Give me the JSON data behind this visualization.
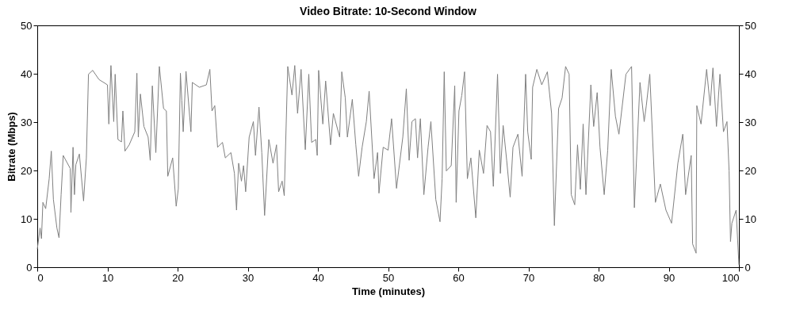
{
  "chart_data": {
    "type": "line",
    "title": "Video Bitrate: 10-Second Window",
    "xlabel": "Time (minutes)",
    "ylabel": "Bitrate (Mbps)",
    "x": [
      0.0,
      0.4,
      0.6,
      0.8,
      1.2,
      1.7,
      2.0,
      2.3,
      2.8,
      3.1,
      3.4,
      3.7,
      4.7,
      4.8,
      5.1,
      5.3,
      5.5,
      6.0,
      6.6,
      7.0,
      7.3,
      7.9,
      8.8,
      10.0,
      10.2,
      10.5,
      10.9,
      11.1,
      11.5,
      12.0,
      12.2,
      12.5,
      13.1,
      13.9,
      14.2,
      14.4,
      14.7,
      15.2,
      15.8,
      16.1,
      16.4,
      16.9,
      17.4,
      18.0,
      18.4,
      18.6,
      19.3,
      19.8,
      20.1,
      20.4,
      20.6,
      20.8,
      21.2,
      21.9,
      22.1,
      23.1,
      24.1,
      24.6,
      24.9,
      25.3,
      25.7,
      26.4,
      26.8,
      27.6,
      28.1,
      28.4,
      28.7,
      29.1,
      29.4,
      29.7,
      30.2,
      30.8,
      31.1,
      31.6,
      32.0,
      32.4,
      33.0,
      33.6,
      34.1,
      34.4,
      34.9,
      35.2,
      35.7,
      36.3,
      36.7,
      37.1,
      37.6,
      38.2,
      38.7,
      39.1,
      39.7,
      39.9,
      40.1,
      40.7,
      41.1,
      41.8,
      42.2,
      43.1,
      43.4,
      43.9,
      44.2,
      44.9,
      45.4,
      45.8,
      46.3,
      46.9,
      47.3,
      48.0,
      48.5,
      48.7,
      49.3,
      50.0,
      50.5,
      51.2,
      52.1,
      52.6,
      53.0,
      53.4,
      53.9,
      54.2,
      54.6,
      55.1,
      55.7,
      56.1,
      56.8,
      57.4,
      57.7,
      58.0,
      58.3,
      59.0,
      59.5,
      59.7,
      60.1,
      60.5,
      60.9,
      61.3,
      61.8,
      62.5,
      63.0,
      63.6,
      64.1,
      64.6,
      65.0,
      65.6,
      66.0,
      66.4,
      66.9,
      67.4,
      67.8,
      68.5,
      69.1,
      69.6,
      69.9,
      70.4,
      70.6,
      71.2,
      71.9,
      72.7,
      73.3,
      73.7,
      74.3,
      74.8,
      75.3,
      75.8,
      76.1,
      76.6,
      77.0,
      77.4,
      77.8,
      78.2,
      78.9,
      79.3,
      79.8,
      80.2,
      80.8,
      81.3,
      81.8,
      82.4,
      82.9,
      83.9,
      84.7,
      85.1,
      85.9,
      86.5,
      86.8,
      87.3,
      88.1,
      88.8,
      89.6,
      90.4,
      91.3,
      92.0,
      92.4,
      93.2,
      93.4,
      93.9,
      94.0,
      94.6,
      95.4,
      95.9,
      96.3,
      96.8,
      97.3,
      97.8,
      98.3,
      98.6,
      98.8,
      99.0,
      99.6,
      100.0
    ],
    "values": [
      3.7,
      8.1,
      5.9,
      13.4,
      12.1,
      18.3,
      24,
      14,
      8.1,
      6.1,
      15,
      23.1,
      20.4,
      11.3,
      24.8,
      15,
      21.2,
      23.4,
      13.7,
      22.6,
      39.9,
      40.7,
      38.8,
      37.7,
      29.6,
      41.7,
      30.1,
      39.9,
      26.4,
      25.9,
      32.3,
      24,
      25.3,
      28,
      40.1,
      26.9,
      35.8,
      29.1,
      26.9,
      22.1,
      37.5,
      23.7,
      41.5,
      32.8,
      32.3,
      18.8,
      22.6,
      12.6,
      16.2,
      40.1,
      34.5,
      28,
      40.5,
      28,
      38.2,
      37.2,
      37.7,
      40.9,
      32.3,
      33.4,
      24.8,
      25.8,
      22.6,
      23.7,
      19.4,
      11.8,
      21.5,
      17.8,
      21,
      15.6,
      26.9,
      30.1,
      23.1,
      33.1,
      23.7,
      10.7,
      26.4,
      21.5,
      25.3,
      15.6,
      17.8,
      14.8,
      41.5,
      35.6,
      41.7,
      31.8,
      40.9,
      24.3,
      39.9,
      25.8,
      26.4,
      23.1,
      40.7,
      29.6,
      38.5,
      25.3,
      31.8,
      26.9,
      40.4,
      35,
      26.9,
      34.7,
      25.3,
      18.8,
      24.8,
      30.1,
      36.4,
      18.3,
      23.7,
      15.3,
      24.8,
      24.2,
      30.7,
      16.3,
      26.9,
      36.9,
      22.1,
      30.1,
      30.7,
      22.6,
      30.7,
      15,
      24.8,
      30.1,
      14,
      9.4,
      18.3,
      40.4,
      19.9,
      21,
      37.5,
      13.4,
      32.3,
      35.5,
      40.4,
      18.3,
      22.6,
      10.2,
      24.2,
      19.4,
      29.3,
      28,
      16.7,
      39.9,
      19.4,
      29.3,
      22.1,
      14.5,
      24.8,
      27.5,
      18.8,
      39.9,
      28,
      22.3,
      37.2,
      40.9,
      37.7,
      40.4,
      31.8,
      8.6,
      32.8,
      35,
      41.5,
      39.9,
      15,
      12.9,
      25.3,
      16.1,
      29.6,
      15,
      37.7,
      29.1,
      36.1,
      24.8,
      15,
      24.2,
      40.9,
      31.2,
      27.5,
      39.9,
      41.5,
      12.3,
      38.2,
      30.1,
      33.4,
      39.9,
      13.4,
      17.2,
      11.8,
      9.1,
      21.5,
      27.5,
      15,
      23.1,
      4.8,
      2.9,
      33.4,
      29.6,
      40.9,
      33.4,
      41.2,
      29.1,
      39.9,
      28,
      30.1,
      19.9,
      5.3,
      9.1,
      11.8,
      0.5
    ],
    "color": "#808080",
    "line_style": "solid",
    "marker": "none",
    "xlim": [
      0,
      100
    ],
    "xticks": [
      0,
      10,
      20,
      30,
      40,
      50,
      60,
      70,
      80,
      90,
      100
    ],
    "ylim": [
      0,
      50
    ],
    "yticks": [
      0,
      10,
      20,
      30,
      40,
      50
    ],
    "y2lim": [
      0,
      50
    ],
    "y2ticks": [
      0,
      10,
      20,
      30,
      40,
      50
    ],
    "grid": false
  }
}
